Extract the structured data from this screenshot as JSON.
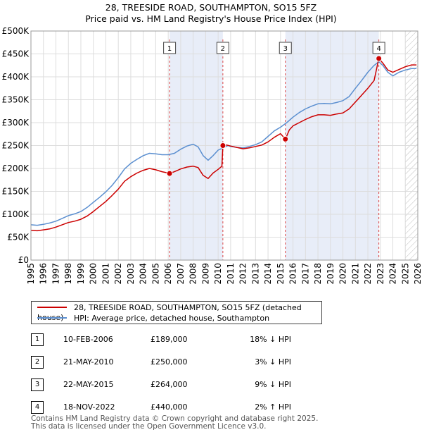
{
  "chart_data": {
    "type": "line",
    "title": "28, TREESIDE ROAD, SOUTHAMPTON, SO15 5FZ",
    "subtitle": "Price paid vs. HM Land Registry's House Price Index (HPI)",
    "xlim": [
      1995,
      2026
    ],
    "ylim": [
      0,
      500000
    ],
    "x_ticks": [
      "1995",
      "1996",
      "1997",
      "1998",
      "1999",
      "2000",
      "2001",
      "2002",
      "2003",
      "2004",
      "2005",
      "2006",
      "2007",
      "2008",
      "2009",
      "2010",
      "2011",
      "2012",
      "2013",
      "2014",
      "2015",
      "2016",
      "2017",
      "2018",
      "2019",
      "2020",
      "2021",
      "2022",
      "2023",
      "2024",
      "2025",
      "2026"
    ],
    "y_ticks": [
      {
        "value": 0,
        "label": "£0"
      },
      {
        "value": 50000,
        "label": "£50K"
      },
      {
        "value": 100000,
        "label": "£100K"
      },
      {
        "value": 150000,
        "label": "£150K"
      },
      {
        "value": 200000,
        "label": "£200K"
      },
      {
        "value": 250000,
        "label": "£250K"
      },
      {
        "value": 300000,
        "label": "£300K"
      },
      {
        "value": 350000,
        "label": "£350K"
      },
      {
        "value": 400000,
        "label": "£400K"
      },
      {
        "value": 450000,
        "label": "£450K"
      },
      {
        "value": 500000,
        "label": "£500K"
      }
    ],
    "shaded_ranges": [
      [
        2006.11,
        2010.38
      ],
      [
        2015.39,
        2022.88
      ]
    ],
    "future_hatch_from": 2025.0,
    "series": [
      {
        "name": "28, TREESIDE ROAD, SOUTHAMPTON, SO15 5FZ (detached house)",
        "color": "#cc0000",
        "points": [
          [
            1995.0,
            65000
          ],
          [
            1995.5,
            64000
          ],
          [
            1996.0,
            66000
          ],
          [
            1996.5,
            68000
          ],
          [
            1997.0,
            72000
          ],
          [
            1997.5,
            77000
          ],
          [
            1998.0,
            82000
          ],
          [
            1998.5,
            85000
          ],
          [
            1999.0,
            89000
          ],
          [
            1999.5,
            96000
          ],
          [
            2000.0,
            106000
          ],
          [
            2000.5,
            117000
          ],
          [
            2001.0,
            128000
          ],
          [
            2001.5,
            141000
          ],
          [
            2002.0,
            155000
          ],
          [
            2002.5,
            172000
          ],
          [
            2003.0,
            182000
          ],
          [
            2003.5,
            190000
          ],
          [
            2004.0,
            196000
          ],
          [
            2004.5,
            200000
          ],
          [
            2005.0,
            197000
          ],
          [
            2005.5,
            193000
          ],
          [
            2006.0,
            190000
          ],
          [
            2006.11,
            189000
          ],
          [
            2006.5,
            193000
          ],
          [
            2007.0,
            199000
          ],
          [
            2007.5,
            203000
          ],
          [
            2008.0,
            205000
          ],
          [
            2008.4,
            202000
          ],
          [
            2008.8,
            185000
          ],
          [
            2009.2,
            178000
          ],
          [
            2009.6,
            190000
          ],
          [
            2010.0,
            198000
          ],
          [
            2010.3,
            205000
          ],
          [
            2010.38,
            250000
          ],
          [
            2010.7,
            251000
          ],
          [
            2011.0,
            249000
          ],
          [
            2011.5,
            246000
          ],
          [
            2012.0,
            243000
          ],
          [
            2012.5,
            245000
          ],
          [
            2013.0,
            248000
          ],
          [
            2013.5,
            251000
          ],
          [
            2014.0,
            258000
          ],
          [
            2014.5,
            268000
          ],
          [
            2015.0,
            276000
          ],
          [
            2015.39,
            264000
          ],
          [
            2015.7,
            284000
          ],
          [
            2016.0,
            293000
          ],
          [
            2016.5,
            300000
          ],
          [
            2017.0,
            307000
          ],
          [
            2017.5,
            313000
          ],
          [
            2018.0,
            317000
          ],
          [
            2018.5,
            317000
          ],
          [
            2019.0,
            316000
          ],
          [
            2019.5,
            319000
          ],
          [
            2020.0,
            321000
          ],
          [
            2020.5,
            330000
          ],
          [
            2021.0,
            345000
          ],
          [
            2021.5,
            360000
          ],
          [
            2022.0,
            375000
          ],
          [
            2022.5,
            392000
          ],
          [
            2022.88,
            440000
          ],
          [
            2023.2,
            430000
          ],
          [
            2023.6,
            415000
          ],
          [
            2024.0,
            410000
          ],
          [
            2024.5,
            416000
          ],
          [
            2025.0,
            422000
          ],
          [
            2025.5,
            426000
          ],
          [
            2025.9,
            426000
          ]
        ]
      },
      {
        "name": "HPI: Average price, detached house, Southampton",
        "color": "#5b8fd0",
        "points": [
          [
            1995.0,
            77000
          ],
          [
            1995.5,
            76000
          ],
          [
            1996.0,
            78000
          ],
          [
            1996.5,
            81000
          ],
          [
            1997.0,
            85000
          ],
          [
            1997.5,
            91000
          ],
          [
            1998.0,
            97000
          ],
          [
            1998.5,
            101000
          ],
          [
            1999.0,
            106000
          ],
          [
            1999.5,
            115000
          ],
          [
            2000.0,
            126000
          ],
          [
            2000.5,
            137000
          ],
          [
            2001.0,
            149000
          ],
          [
            2001.5,
            163000
          ],
          [
            2002.0,
            180000
          ],
          [
            2002.5,
            199000
          ],
          [
            2003.0,
            211000
          ],
          [
            2003.5,
            220000
          ],
          [
            2004.0,
            228000
          ],
          [
            2004.5,
            233000
          ],
          [
            2005.0,
            232000
          ],
          [
            2005.5,
            230000
          ],
          [
            2006.0,
            230000
          ],
          [
            2006.5,
            233000
          ],
          [
            2007.0,
            242000
          ],
          [
            2007.5,
            249000
          ],
          [
            2008.0,
            253000
          ],
          [
            2008.4,
            247000
          ],
          [
            2008.8,
            228000
          ],
          [
            2009.2,
            218000
          ],
          [
            2009.6,
            228000
          ],
          [
            2010.0,
            240000
          ],
          [
            2010.4,
            245000
          ],
          [
            2010.8,
            250000
          ],
          [
            2011.0,
            248000
          ],
          [
            2011.5,
            246000
          ],
          [
            2012.0,
            245000
          ],
          [
            2012.5,
            248000
          ],
          [
            2013.0,
            252000
          ],
          [
            2013.5,
            258000
          ],
          [
            2014.0,
            270000
          ],
          [
            2014.5,
            282000
          ],
          [
            2015.0,
            290000
          ],
          [
            2015.5,
            300000
          ],
          [
            2016.0,
            312000
          ],
          [
            2016.5,
            322000
          ],
          [
            2017.0,
            330000
          ],
          [
            2017.5,
            336000
          ],
          [
            2018.0,
            341000
          ],
          [
            2018.5,
            342000
          ],
          [
            2019.0,
            341000
          ],
          [
            2019.5,
            344000
          ],
          [
            2020.0,
            348000
          ],
          [
            2020.5,
            357000
          ],
          [
            2021.0,
            375000
          ],
          [
            2021.5,
            392000
          ],
          [
            2022.0,
            410000
          ],
          [
            2022.5,
            425000
          ],
          [
            2022.88,
            433000
          ],
          [
            2023.2,
            425000
          ],
          [
            2023.6,
            410000
          ],
          [
            2024.0,
            402000
          ],
          [
            2024.5,
            410000
          ],
          [
            2025.0,
            415000
          ],
          [
            2025.5,
            418000
          ],
          [
            2025.9,
            418000
          ]
        ]
      }
    ],
    "sales": [
      {
        "num": "1",
        "x": 2006.11,
        "price": 189000
      },
      {
        "num": "2",
        "x": 2010.38,
        "price": 250000
      },
      {
        "num": "3",
        "x": 2015.39,
        "price": 264000
      },
      {
        "num": "4",
        "x": 2022.88,
        "price": 440000
      }
    ]
  },
  "legend": {
    "price_label": "28, TREESIDE ROAD, SOUTHAMPTON, SO15 5FZ (detached house)",
    "hpi_label": "HPI: Average price, detached house, Southampton",
    "price_color": "#cc0000",
    "hpi_color": "#5b8fd0"
  },
  "sales_table": [
    {
      "num": "1",
      "date": "10-FEB-2006",
      "price": "£189,000",
      "hpi": "18% ↓ HPI"
    },
    {
      "num": "2",
      "date": "21-MAY-2010",
      "price": "£250,000",
      "hpi": "3% ↓ HPI"
    },
    {
      "num": "3",
      "date": "22-MAY-2015",
      "price": "£264,000",
      "hpi": "9% ↓ HPI"
    },
    {
      "num": "4",
      "date": "18-NOV-2022",
      "price": "£440,000",
      "hpi": "2% ↑ HPI"
    }
  ],
  "footer": {
    "line1": "Contains HM Land Registry data © Crown copyright and database right 2025.",
    "line2": "This data is licensed under the Open Government Licence v3.0."
  }
}
